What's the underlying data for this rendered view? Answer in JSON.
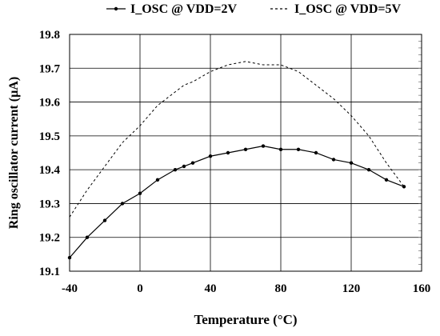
{
  "chart_data": {
    "type": "line",
    "title": "",
    "xlabel": "Temperature (°C)",
    "ylabel": "Ring oscillator current (µA)",
    "xlim": [
      -40,
      160
    ],
    "ylim": [
      19.1,
      19.8
    ],
    "xticks": [
      -40,
      0,
      40,
      80,
      120,
      160
    ],
    "yticks": [
      19.1,
      19.2,
      19.3,
      19.4,
      19.5,
      19.6,
      19.7,
      19.8
    ],
    "xtick_labels": [
      "-40",
      "0",
      "40",
      "80",
      "120",
      "160"
    ],
    "ytick_labels": [
      "19.1",
      "19.2",
      "19.3",
      "19.4",
      "19.5",
      "19.6",
      "19.7",
      "19.8"
    ],
    "grid": true,
    "legend_position": "top",
    "series": [
      {
        "name": "I_OSC @ VDD=2V",
        "style": "solid-markers",
        "color": "#000000",
        "x": [
          -40,
          -30,
          -20,
          -10,
          0,
          10,
          20,
          25,
          30,
          40,
          50,
          60,
          70,
          80,
          90,
          100,
          110,
          120,
          130,
          140,
          150
        ],
        "y": [
          19.14,
          19.2,
          19.25,
          19.3,
          19.33,
          19.37,
          19.4,
          19.41,
          19.42,
          19.44,
          19.45,
          19.46,
          19.47,
          19.46,
          19.46,
          19.45,
          19.43,
          19.42,
          19.4,
          19.37,
          19.35
        ]
      },
      {
        "name": "I_OSC @ VDD=5V",
        "style": "dashed",
        "color": "#000000",
        "x": [
          -40,
          -30,
          -20,
          -10,
          0,
          10,
          20,
          25,
          30,
          40,
          50,
          60,
          70,
          80,
          90,
          100,
          110,
          120,
          130,
          140,
          150
        ],
        "y": [
          19.26,
          19.34,
          19.41,
          19.48,
          19.53,
          19.59,
          19.63,
          19.65,
          19.66,
          19.69,
          19.71,
          19.72,
          19.71,
          19.71,
          19.69,
          19.65,
          19.61,
          19.56,
          19.5,
          19.42,
          19.35
        ]
      }
    ]
  }
}
